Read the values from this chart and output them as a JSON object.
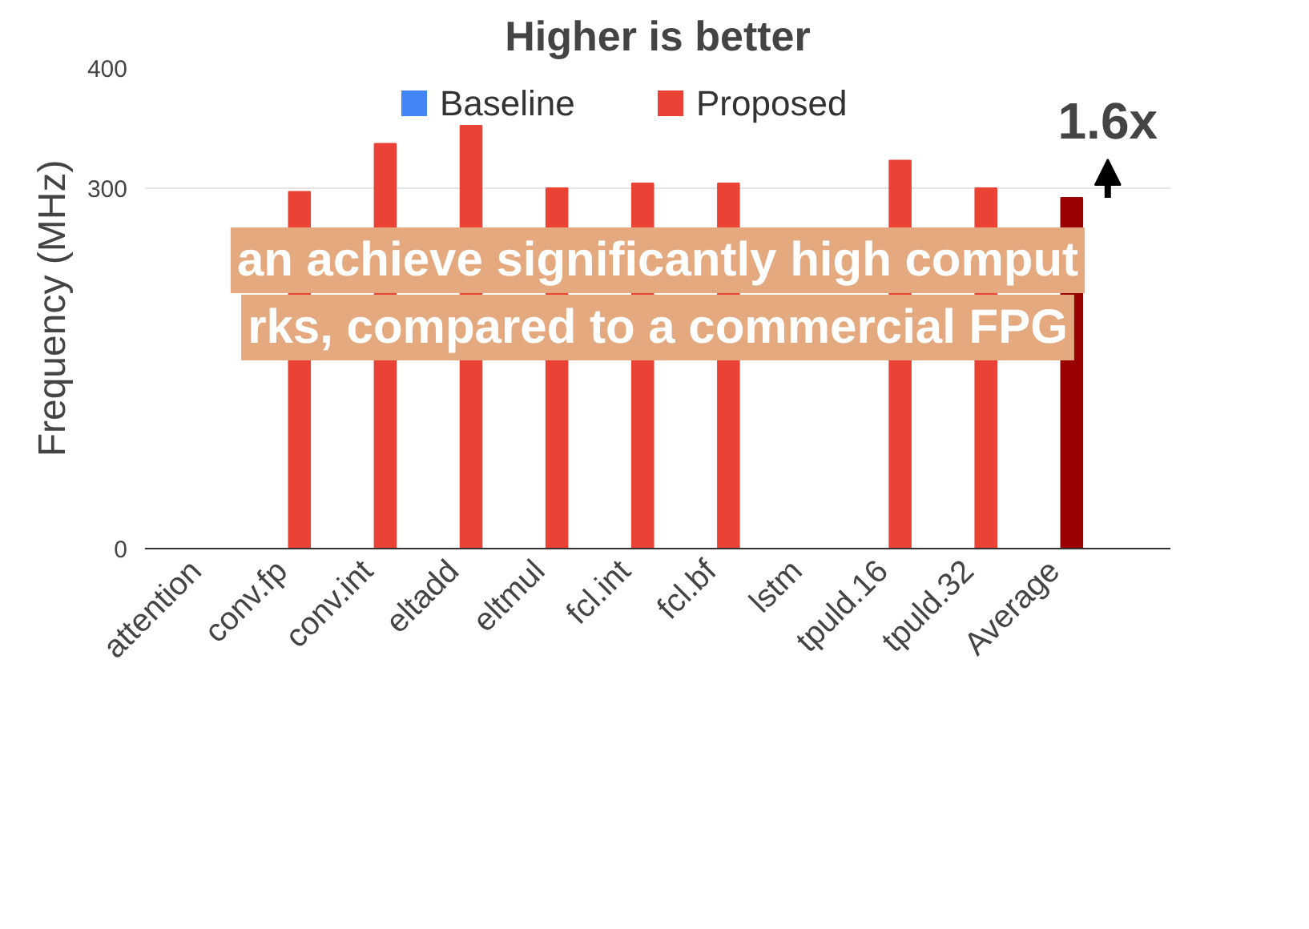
{
  "chart_data": {
    "type": "bar",
    "title": "Higher is better",
    "ylabel": "Frequency (MHz)",
    "categories": [
      "attention",
      "conv.fp",
      "conv.int",
      "eltadd",
      "eltmul",
      "fcl.int",
      "fcl.bf",
      "lstm",
      "tpuld.16",
      "tpuld.32",
      "Average"
    ],
    "series": [
      {
        "name": "Baseline",
        "color": "#4285f4",
        "values": [
          null,
          null,
          null,
          null,
          null,
          null,
          null,
          null,
          null,
          null,
          null
        ]
      },
      {
        "name": "Proposed",
        "color": "#ea4335",
        "colors": [
          "#ea4335",
          "#ea4335",
          "#ea4335",
          "#ea4335",
          "#ea4335",
          "#ea4335",
          "#ea4335",
          "#ea4335",
          "#ea4335",
          "#ea4335",
          "#990000"
        ],
        "values": [
          null,
          297,
          337,
          352,
          300,
          304,
          304,
          null,
          323,
          300,
          292
        ]
      }
    ],
    "ylim": [
      0,
      400
    ],
    "yticks": [
      0,
      300,
      400
    ],
    "grid": "y",
    "legend": "top",
    "annotations": [
      "an achieve significantly high comput",
      "rks, compared to a commercial FPG",
      {
        "text": "1.6x",
        "x": "Average",
        "y": 292
      }
    ]
  }
}
